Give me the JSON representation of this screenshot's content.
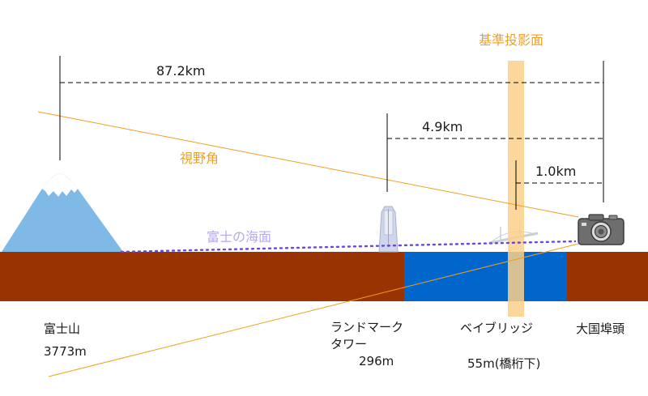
{
  "projection_plane_label": "基準投影面",
  "distances": {
    "fuji": "87.2km",
    "landmark": "4.9km",
    "bay_bridge": "1.0km"
  },
  "field_of_view_label": "視野角",
  "fuji_sea_level_label": "富士の海面",
  "landmarks": {
    "fuji_name": "富士山",
    "fuji_height": "3773m",
    "landmark_name_line1": "ランドマーク",
    "landmark_name_line2": "タワー",
    "landmark_height": "296m",
    "bridge_name": "ベイブリッジ",
    "bridge_height": "55m(橋桁下)",
    "pier_name": "大国埠頭"
  },
  "colors": {
    "ground": "#993300",
    "sea": "#0066cc",
    "mountain": "#7fb9e6",
    "projection_plane": "#fbd08a",
    "fov_line": "#f0a020",
    "sea_level_dots": "#6a45e0"
  }
}
